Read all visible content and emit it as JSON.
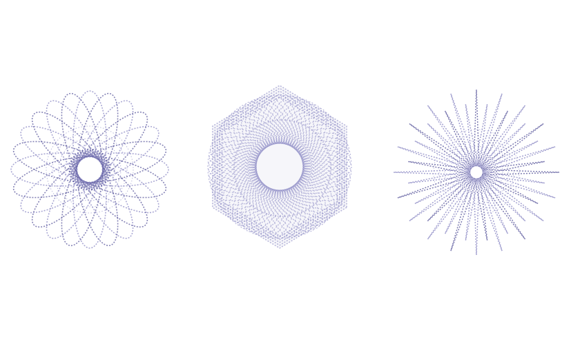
{
  "colors": {
    "background": "#ffffff",
    "stroke": "#5c5a9e",
    "stroke_light": "#8c8ac4",
    "fill_faint": "#e6e4f2"
  },
  "figures": [
    {
      "kind": "rotated-ellipse-rosette",
      "petals": 24,
      "dashed": true
    },
    {
      "kind": "dense-hexagonal-mesh",
      "dashed": true
    },
    {
      "kind": "starburst-rays",
      "rays": 40,
      "dashed": true
    }
  ]
}
